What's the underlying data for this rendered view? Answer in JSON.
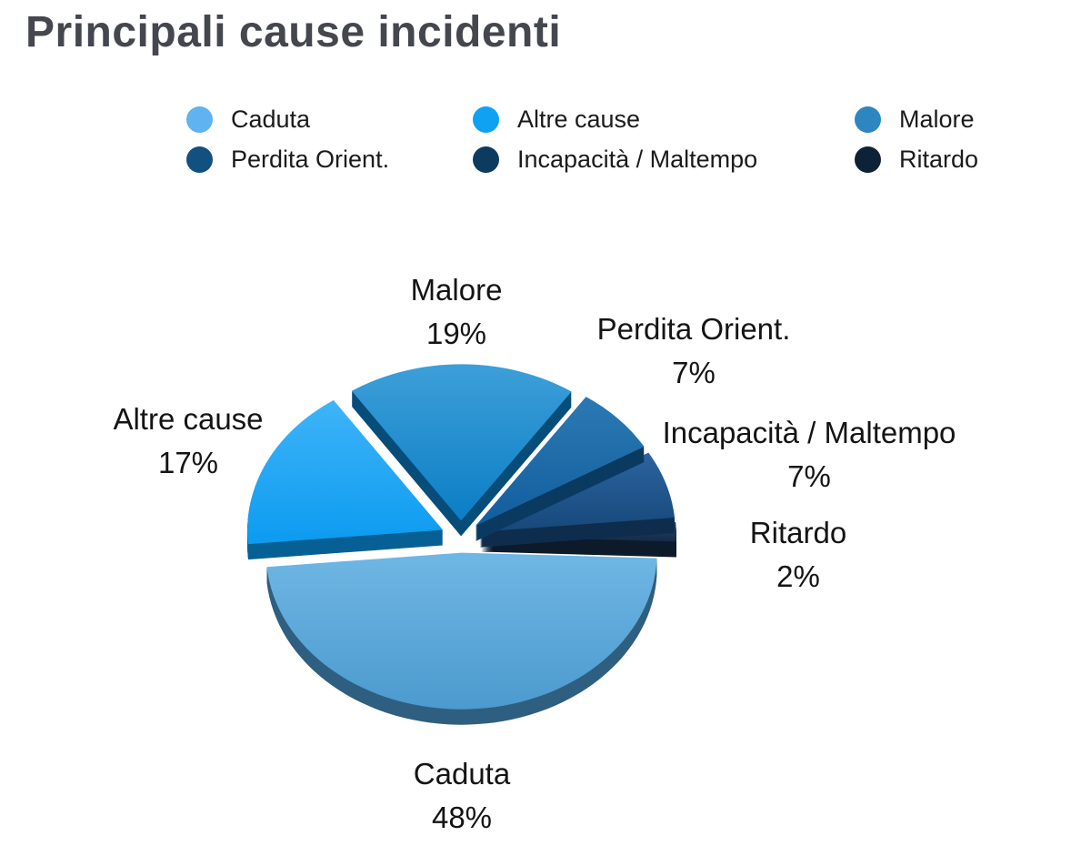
{
  "chart_data": {
    "type": "pie",
    "style": "3d-exploded",
    "title": "Principali cause incidenti",
    "legend_position": "top",
    "grid": false,
    "value_suffix": "%",
    "start_angle_deg": -2,
    "title_color": "#45474F",
    "label_text_color": "#141414",
    "slices": [
      {
        "label": "Ritardo",
        "value": 2,
        "color": "#132A46",
        "color_light": "#27476B",
        "legend_color": "#0D2137",
        "label_offset": [
          371,
          20
        ]
      },
      {
        "label": "Incapacità / Maltempo",
        "value": 7,
        "color": "#16487A",
        "color_light": "#2C64A0",
        "legend_color": "#0D3A5F",
        "label_offset": [
          383,
          -90
        ]
      },
      {
        "label": "Perdita Orient.",
        "value": 7,
        "color": "#125E9D",
        "color_light": "#2B79B4",
        "legend_color": "#12507F",
        "label_offset": [
          256,
          -204
        ]
      },
      {
        "label": "Malore",
        "value": 19,
        "color": "#0B7EC5",
        "color_light": "#3D9FD9",
        "legend_color": "#2E86C1",
        "label_offset": [
          -5,
          -247
        ]
      },
      {
        "label": "Altre cause",
        "value": 17,
        "color": "#0C9BF0",
        "color_light": "#3FB4F8",
        "legend_color": "#0FA2F3",
        "label_offset": [
          -300,
          -105
        ]
      },
      {
        "label": "Caduta",
        "value": 48,
        "color": "#4C9ACF",
        "color_light": "#6FB7E4",
        "legend_color": "#5EB3F0",
        "label_offset": [
          1,
          285
        ]
      }
    ],
    "legend_items": [
      "Caduta",
      "Altre cause",
      "Malore",
      "Perdita Orient.",
      "Incapacità / Maltempo",
      "Ritardo"
    ]
  }
}
